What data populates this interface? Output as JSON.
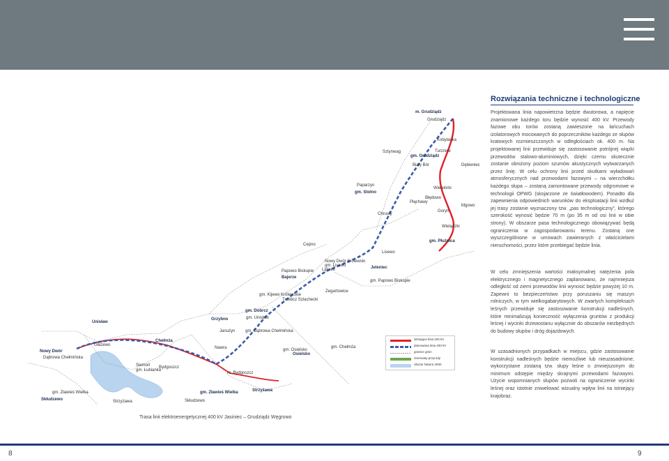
{
  "header": {
    "menu_icon": "hamburger-menu-icon",
    "bar_color": "#6e7a80"
  },
  "section": {
    "title": "Rozwiązania techniczne i technologiczne",
    "title_color": "#1f3c74",
    "paragraphs": [
      "Projektowana linia napowietrzna będzie dwutorowa, a napięcie znamionowe każdego toru będzie wynosić 400 kV. Przewody fazowe obu torów zostaną zawieszone na łańcuchach izolatorowych mocowanych do poprzeczników każdego ze słupów kratowych rozmieszczonych w odległościach ok. 400 m. Na projektowanej linii przewiduje się zastosowanie potrójnej wiązki przewodów stalowo-aluminiowych, dzięki czemu skutecznie zostanie obniżony poziom szumów akustycznych wytwarzanych przez linię. W celu ochrony linii przed skutkami wyładowań atmosferycznych nad przewodami fazowymi – na wierzchołku każdego słupa – zostaną zamontowane przewody odgromowe w technologii OPWG (skojarzone ze światłowodem). Ponadto dla zapewnienia odpowiednich warunków do eksploatacji linii wzdłuż jej trasy zostanie wyznaczony tzw. „pas technologiczny”, którego szerokość wynosić będzie 70 m (po 35 m od osi linii w obie strony). W obszarze pasa technologicznego obowiązywać będą ograniczenia w zagospodarowaniu terenu. Zostaną one wyszczególnione w umowach zawieranych z właścicielami nieruchomości, przez które przebiegać będzie linia.",
      "W celu zmniejszenia wartości maksymalnej natężenia pola elektrycznego i magnetycznego zaplanowano, że najmniejsza odległość od ziemi przewodów linii wynosić będzie powyżej 10 m. Zapewni to bezpieczeństwo przy poruszaniu się maszyn rolniczych, w tym wielkogabarytowych. W zwartych kompleksach leśnych przewiduje się zastosowanie konstrukcji nadleśnych, które minimalizują konieczność wyłączenia gruntów z produkcji leśnej i wycinki drzewostanu wyłącznie do obszarów niezbędnych do budowy słupów i dróg dojazdowych.",
      "W uzasadnionych przypadkach w miejscu, gdzie zastosowanie konstrukcji nadleśnych będzie niemożliwe lub nieuzasadnione, wykorzystane zostaną tzw. słupy leśne o zmniejszonym do minimum odstępie między skrajnymi przewodami fazowymi. Użycie wspomnianych słupów pozwoli na ograniczenie wycinki leśnej oraz istotnie zniwelować wizualny wpływ linii na istniejący krajobraz."
    ]
  },
  "map": {
    "route_color": "#e02027",
    "dashed_color": "#3a5aa8",
    "water_color": "#b8d4ee",
    "boundary_color": "#9a9a9a",
    "places": [
      "m. Grudziądz",
      "Grudziądz",
      "Kobylanka",
      "Turznice",
      "gm. Grudziądz",
      "Biały Bór",
      "Dębieniec",
      "Sztynwag",
      "Paparzyn",
      "gm. Stolno",
      "Wiewiórki",
      "Błędowo",
      "Płąchawy",
      "Goryń",
      "Mgowo",
      "Chrusty",
      "Wielądzki",
      "gm. Płużnica",
      "Lisewo",
      "Cepno",
      "Nowy Dwór Królewski",
      "gm. Lisewo",
      "Lipinek",
      "Jeleniec",
      "gm. Papowo Biskupie",
      "Papowo Biskupie",
      "Bajerze",
      "Zegartowice",
      "gm. Kijewo Królewskie",
      "Trzebcz Szlachecki",
      "gm. Dobrcz",
      "gm. Unisław",
      "Unisław",
      "Grzybno",
      "Janużyn",
      "gm. Dąbrowa Chełmińska",
      "Głażewo",
      "Chełmża",
      "Nawra",
      "gm. Chełmża",
      "gm. Osielsko",
      "Osielsko",
      "Nowy Dwór",
      "Dąbrowa Chełmińska",
      "Siemoń",
      "gm. Łubianka",
      "Bydgoszcz",
      "m. Bydgoszcz",
      "Strzyżawa",
      "gm. Zławieś Wielka",
      "Skłudzewo"
    ]
  },
  "legend": [
    {
      "label": "istniejąca linia 220 kV",
      "color": "#e02027"
    },
    {
      "label": "planowana linia 400 kV",
      "color": "#3a5aa8"
    },
    {
      "label": "granice gmin",
      "color": "#9a9a9a"
    },
    {
      "label": "rezerwaty przyrody",
      "color": "#6aa84f"
    },
    {
      "label": "obszar Natura 2000",
      "color": "#b8d4ee"
    }
  ],
  "caption": "Trasa linii elektroenergetycznej 400 kV Jasiniec – Grudziądz Węgrowo",
  "footer": {
    "page_left": "8",
    "page_right": "9",
    "rule_color": "#1f3c74"
  }
}
